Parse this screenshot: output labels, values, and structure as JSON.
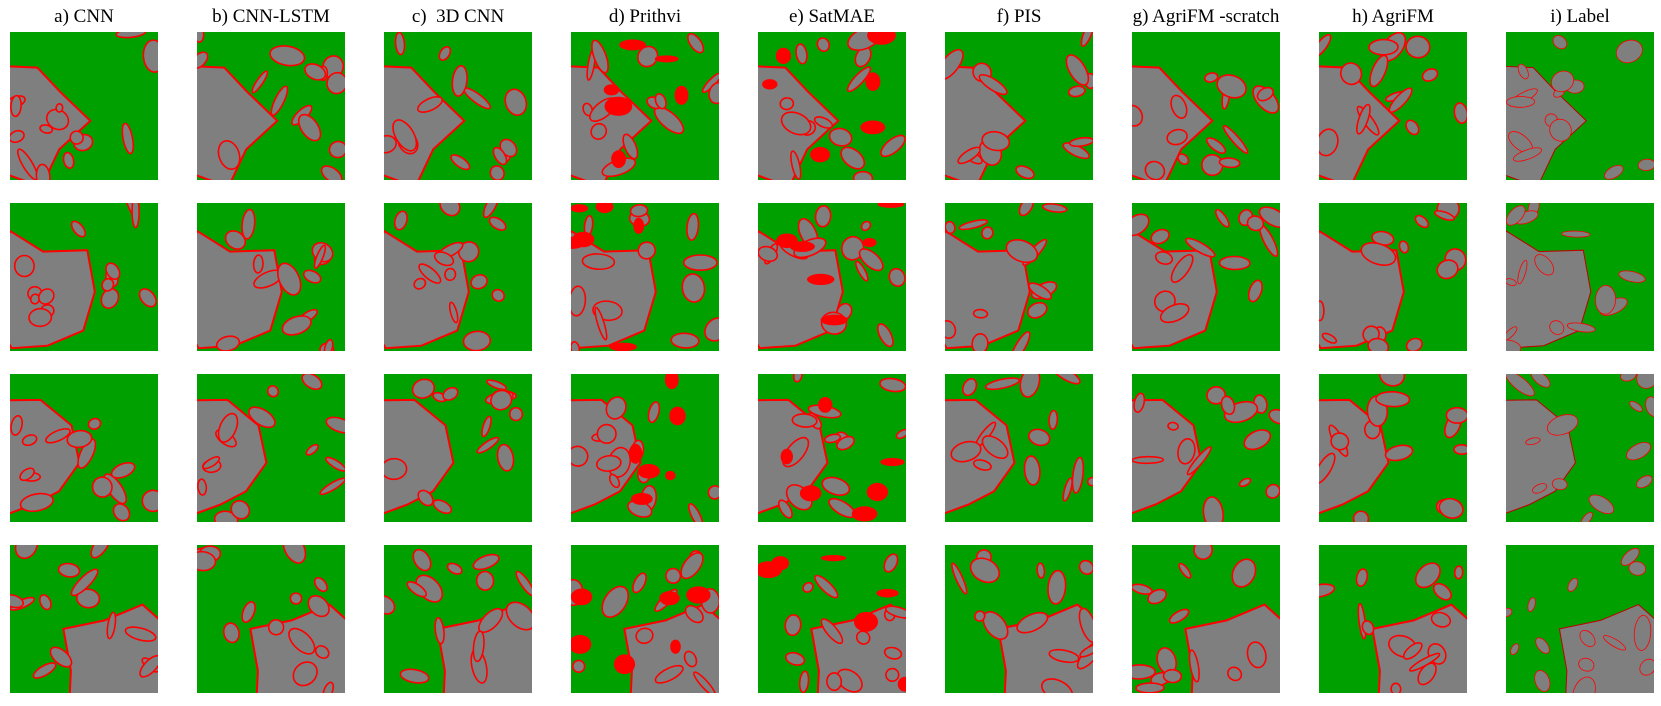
{
  "columns": [
    "a) CNN",
    "b) CNN-LSTM",
    "c)  3D CNN",
    "d) Prithvi",
    "e) SatMAE",
    "f) PIS",
    "g) AgriFM -scratch",
    "h) AgriFM",
    "i) Label"
  ]
}
